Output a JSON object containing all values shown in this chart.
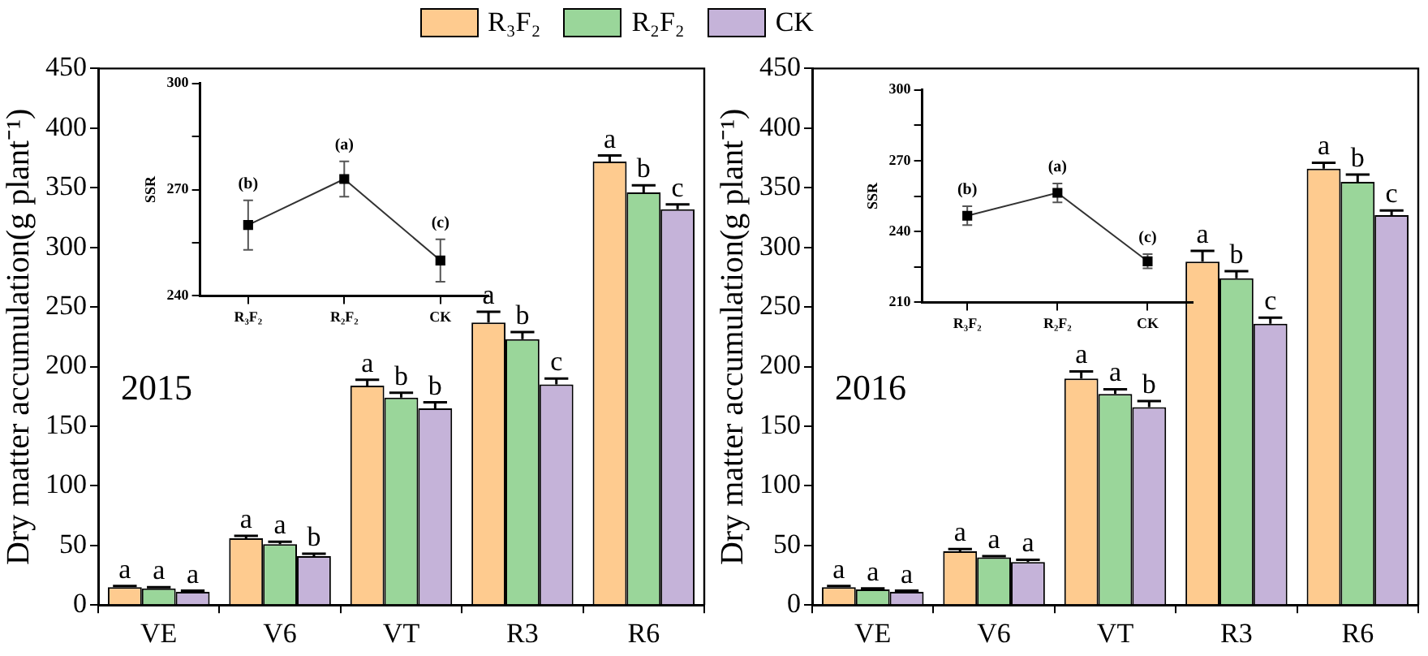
{
  "chart_data": [
    {
      "type": "bar",
      "categories": [
        "VE",
        "V6",
        "VT",
        "R3",
        "R6"
      ],
      "ylabel": "Dry matter accumulation(g plant⁻¹)",
      "ylim": [
        0,
        450
      ],
      "yticks": [
        0,
        50,
        100,
        150,
        200,
        250,
        300,
        350,
        400,
        450
      ],
      "legend": "top",
      "annotations": [
        "2015"
      ],
      "series": [
        {
          "name": "R₃F₂",
          "color": "#fecb8f",
          "values": [
            15,
            56,
            184,
            237,
            372
          ],
          "errors": [
            1,
            2,
            5,
            9,
            5
          ],
          "value_labels": [
            "a",
            "a",
            "a",
            "a",
            "a"
          ]
        },
        {
          "name": "R₂F₂",
          "color": "#9ad69a",
          "values": [
            14,
            51,
            174,
            223,
            346
          ],
          "errors": [
            1,
            2,
            4,
            6,
            6
          ],
          "value_labels": [
            "a",
            "a",
            "b",
            "b",
            "b"
          ]
        },
        {
          "name": "CK",
          "color": "#c5b3d9",
          "values": [
            11,
            41,
            165,
            185,
            332
          ],
          "errors": [
            1,
            2,
            5,
            5,
            4
          ],
          "value_labels": [
            "a",
            "b",
            "b",
            "c",
            "c"
          ]
        }
      ]
    },
    {
      "type": "line",
      "categories": [
        "R₃F₂",
        "R₂F₂",
        "CK"
      ],
      "ylabel": "SSR",
      "ylim": [
        240,
        300
      ],
      "yticks": [
        240,
        {
          "value": 255,
          "label": null
        },
        270,
        {
          "value": 285,
          "label": null
        },
        300
      ],
      "marker": "square",
      "series": [
        {
          "color": "#333333",
          "values": [
            260,
            273,
            250
          ],
          "errors": [
            7,
            5,
            6
          ],
          "value_labels": [
            "(b)",
            "(a)",
            "(c)"
          ]
        }
      ]
    },
    {
      "type": "bar",
      "categories": [
        "VE",
        "V6",
        "VT",
        "R3",
        "R6"
      ],
      "ylabel": "Dry matter accumulation(g plant⁻¹)",
      "ylim": [
        0,
        450
      ],
      "yticks": [
        0,
        50,
        100,
        150,
        200,
        250,
        300,
        350,
        400,
        450
      ],
      "annotations": [
        "2016"
      ],
      "series": [
        {
          "color": "#fecb8f",
          "values": [
            15,
            45,
            190,
            288,
            366
          ],
          "errors": [
            1,
            2,
            6,
            9,
            5
          ],
          "value_labels": [
            "a",
            "a",
            "a",
            "a",
            "a"
          ]
        },
        {
          "color": "#9ad69a",
          "values": [
            13,
            40,
            177,
            274,
            355
          ],
          "errors": [
            1,
            1,
            4,
            6,
            6
          ],
          "value_labels": [
            "a",
            "a",
            "a",
            "b",
            "b"
          ]
        },
        {
          "color": "#c5b3d9",
          "values": [
            11,
            36,
            166,
            236,
            327
          ],
          "errors": [
            1,
            2,
            5,
            5,
            4
          ],
          "value_labels": [
            "a",
            "a",
            "b",
            "c",
            "c"
          ]
        }
      ]
    },
    {
      "type": "line",
      "categories": [
        "R₃F₂",
        "R₂F₂",
        "CK"
      ],
      "ylabel": "SSR",
      "ylim": [
        210,
        300
      ],
      "yticks": [
        210,
        {
          "value": 225,
          "label": null
        },
        240,
        {
          "value": 255,
          "label": null
        },
        270,
        {
          "value": 285,
          "label": null
        },
        300
      ],
      "marker": "square",
      "series": [
        {
          "color": "#333333",
          "values": [
            246.7,
            256.4,
            227.4
          ],
          "errors": [
            4,
            4,
            3
          ],
          "value_labels": [
            "(b)",
            "(a)",
            "(c)"
          ]
        }
      ]
    }
  ]
}
